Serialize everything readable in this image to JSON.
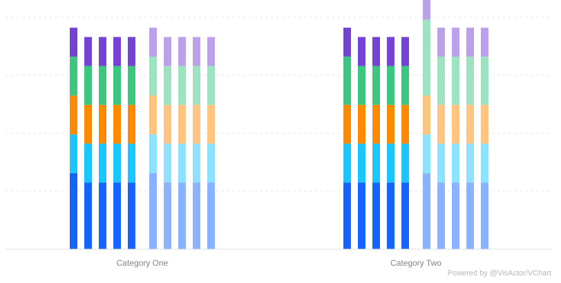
{
  "chart_data": {
    "type": "bar",
    "stacked": true,
    "categories": [
      "Category One",
      "Category Two"
    ],
    "grid": true,
    "legend": "none",
    "ylim": [
      0,
      400
    ],
    "segment_colors": [
      "#1664FF",
      "#1AC6FF",
      "#FF8A00",
      "#3CC780",
      "#7442D4"
    ],
    "groups": [
      {
        "light": false,
        "series": [
          {
            "values": [
              [
                131,
                67,
                67,
                67,
                50
              ],
              [
                115,
                67,
                67,
                83,
                50
              ]
            ]
          },
          {
            "values": [
              [
                115,
                67,
                67,
                67,
                50
              ],
              [
                115,
                67,
                67,
                67,
                50
              ]
            ]
          },
          {
            "values": [
              [
                115,
                67,
                67,
                67,
                50
              ],
              [
                115,
                67,
                67,
                67,
                50
              ]
            ]
          },
          {
            "values": [
              [
                115,
                67,
                67,
                67,
                50
              ],
              [
                115,
                67,
                67,
                67,
                50
              ]
            ]
          },
          {
            "values": [
              [
                115,
                67,
                67,
                67,
                50
              ],
              [
                115,
                67,
                67,
                67,
                50
              ]
            ]
          }
        ]
      },
      {
        "light": true,
        "series": [
          {
            "values": [
              [
                131,
                67,
                67,
                67,
                50
              ],
              [
                131,
                67,
                67,
                131,
                50
              ]
            ]
          },
          {
            "values": [
              [
                115,
                67,
                67,
                67,
                50
              ],
              [
                115,
                67,
                67,
                83,
                50
              ]
            ]
          },
          {
            "values": [
              [
                115,
                67,
                67,
                67,
                50
              ],
              [
                115,
                67,
                67,
                83,
                50
              ]
            ]
          },
          {
            "values": [
              [
                115,
                67,
                67,
                67,
                50
              ],
              [
                115,
                67,
                67,
                83,
                50
              ]
            ]
          },
          {
            "values": [
              [
                115,
                67,
                67,
                67,
                50
              ],
              [
                115,
                67,
                67,
                83,
                50
              ]
            ]
          }
        ]
      }
    ]
  },
  "credit": "Powered by @VisActor/VChart"
}
